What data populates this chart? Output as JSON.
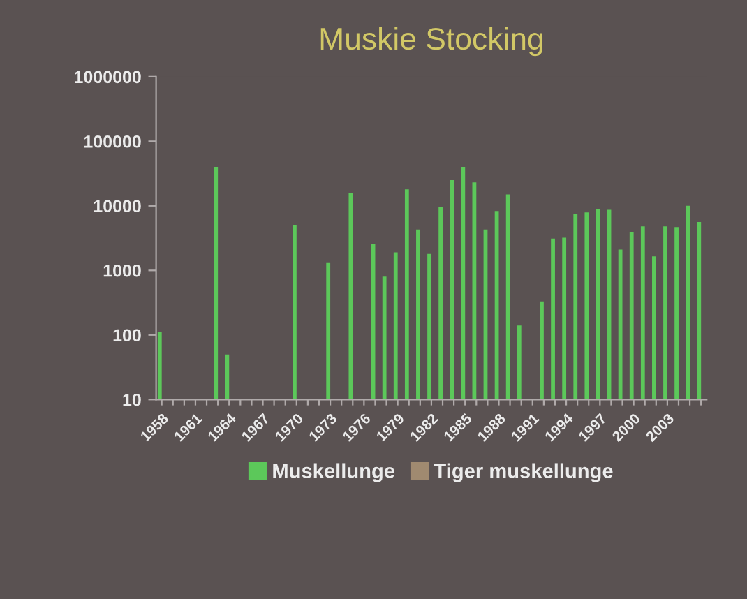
{
  "chart_data": {
    "type": "bar",
    "title": "Muskie Stocking",
    "categories": [
      "1958",
      null,
      null,
      "1961",
      null,
      null,
      "1964",
      null,
      null,
      "1967",
      null,
      null,
      "1970",
      null,
      null,
      "1973",
      null,
      null,
      "1976",
      null,
      null,
      "1979",
      null,
      null,
      "1982",
      null,
      null,
      "1985",
      null,
      null,
      "1988",
      null,
      null,
      "1991",
      null,
      null,
      "1994",
      null,
      null,
      "1997",
      null,
      null,
      "2000",
      null,
      null,
      "2003",
      null,
      null,
      null
    ],
    "series": [
      {
        "name": "Muskellunge",
        "color": "#5cc85a",
        "values": [
          110,
          null,
          null,
          null,
          null,
          40000,
          50,
          null,
          null,
          null,
          null,
          null,
          5000,
          null,
          null,
          1300,
          null,
          16000,
          null,
          2600,
          800,
          1900,
          18000,
          4300,
          1800,
          9500,
          25000,
          40000,
          23000,
          4300,
          8300,
          15000,
          140,
          null,
          330,
          3100,
          3200,
          7400,
          7900,
          8900,
          8700,
          2100,
          3900,
          4800,
          1650,
          4800,
          4700,
          10000,
          5600
        ]
      },
      {
        "name": "Tiger muskellunge",
        "color": "#a08a70",
        "values": [
          null,
          null,
          null,
          null,
          null,
          null,
          null,
          null,
          null,
          null,
          null,
          null,
          null,
          null,
          null,
          null,
          null,
          null,
          null,
          null,
          null,
          null,
          null,
          null,
          null,
          null,
          null,
          null,
          null,
          null,
          null,
          null,
          null,
          null,
          null,
          null,
          null,
          null,
          null,
          null,
          null,
          null,
          null,
          null,
          null,
          null,
          null,
          null,
          null
        ]
      }
    ],
    "log": true,
    "ylim": [
      10,
      1000000
    ],
    "yticks": [
      10,
      100,
      1000,
      10000,
      100000,
      1000000
    ],
    "grid": false,
    "legend": "bottom"
  }
}
